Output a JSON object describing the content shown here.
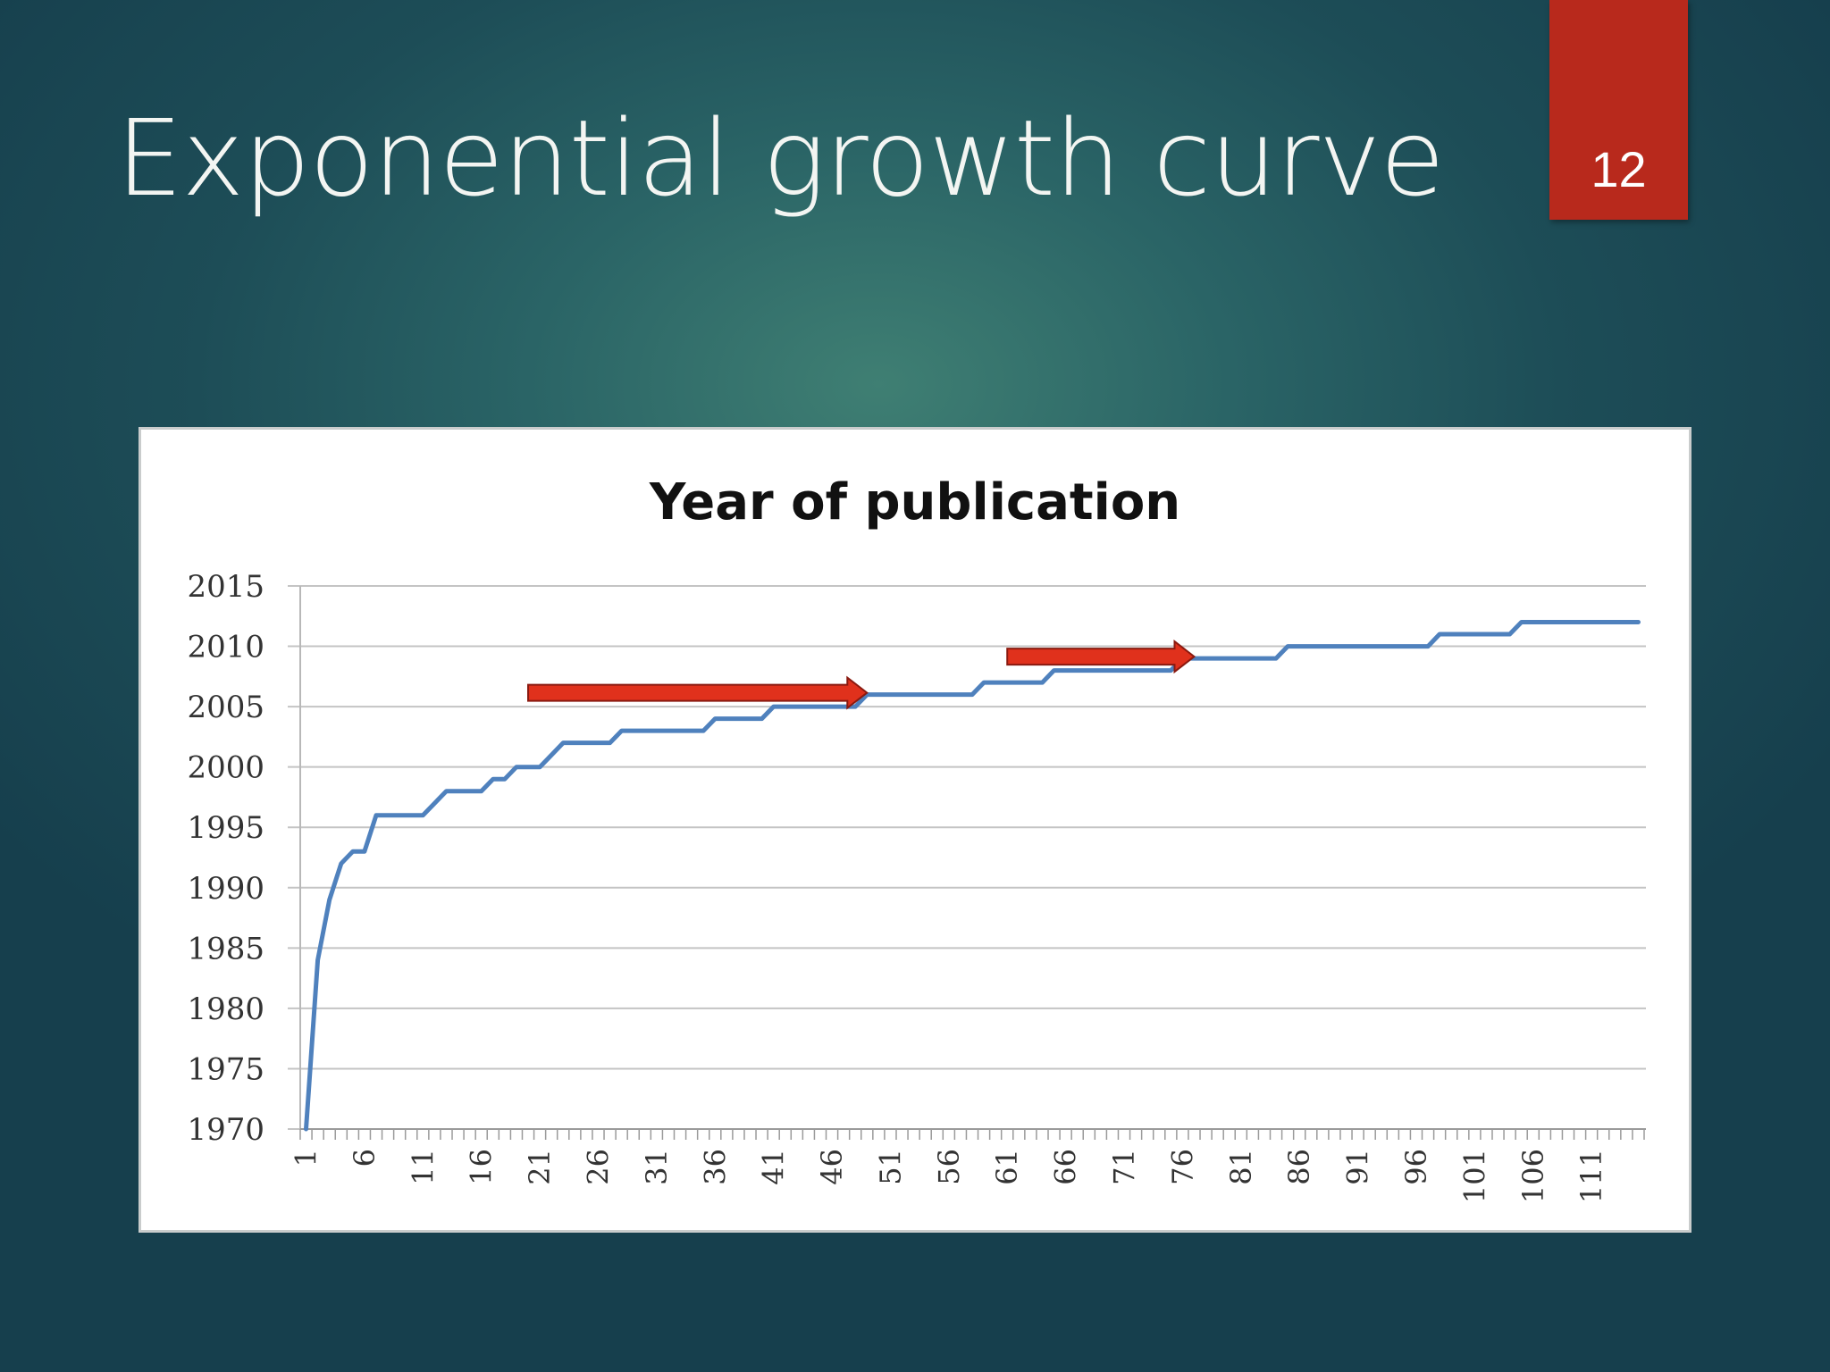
{
  "slide": {
    "title": "Exponential growth curve",
    "page_number": "12"
  },
  "colors": {
    "line": "#4f81bd",
    "arrow": "#e0311c",
    "badge": "#b8291c"
  },
  "chart_data": {
    "type": "line",
    "title": "Year of publication",
    "xlabel": "",
    "ylabel": "",
    "ylim": [
      1970,
      2015
    ],
    "yticks": [
      2015,
      2010,
      2005,
      2000,
      1995,
      1990,
      1985,
      1980,
      1975,
      1970
    ],
    "xlim": [
      1,
      115
    ],
    "xticks": [
      1,
      6,
      11,
      16,
      21,
      26,
      31,
      36,
      41,
      46,
      51,
      56,
      61,
      66,
      71,
      76,
      81,
      86,
      91,
      96,
      101,
      106,
      111
    ],
    "grid": true,
    "legend": "none",
    "series": [
      {
        "x": [
          1,
          2,
          3,
          4,
          5,
          6,
          7,
          8,
          9,
          10,
          11,
          12,
          13,
          14,
          15,
          16,
          17,
          18,
          19,
          20,
          21,
          22,
          23,
          24,
          25,
          26,
          27,
          28,
          29,
          30,
          31,
          32,
          33,
          34,
          35,
          36,
          37,
          38,
          39,
          40,
          41,
          42,
          43,
          44,
          45,
          46,
          47,
          48,
          49,
          50,
          51,
          52,
          53,
          54,
          55,
          56,
          57,
          58,
          59,
          60,
          61,
          62,
          63,
          64,
          65,
          66,
          67,
          68,
          69,
          70,
          71,
          72,
          73,
          74,
          75,
          76,
          77,
          78,
          79,
          80,
          81,
          82,
          83,
          84,
          85,
          86,
          87,
          88,
          89,
          90,
          91,
          92,
          93,
          94,
          95,
          96,
          97,
          98,
          99,
          100,
          101,
          102,
          103,
          104,
          105,
          106,
          107,
          108,
          109,
          110,
          111,
          112,
          113,
          114,
          115
        ],
        "values": [
          1970,
          1984,
          1989,
          1992,
          1993,
          1993,
          1996,
          1996,
          1996,
          1996,
          1996,
          1997,
          1998,
          1998,
          1998,
          1998,
          1999,
          1999,
          2000,
          2000,
          2000,
          2001,
          2002,
          2002,
          2002,
          2002,
          2002,
          2003,
          2003,
          2003,
          2003,
          2003,
          2003,
          2003,
          2003,
          2004,
          2004,
          2004,
          2004,
          2004,
          2005,
          2005,
          2005,
          2005,
          2005,
          2005,
          2005,
          2005,
          2006,
          2006,
          2006,
          2006,
          2006,
          2006,
          2006,
          2006,
          2006,
          2006,
          2007,
          2007,
          2007,
          2007,
          2007,
          2007,
          2008,
          2008,
          2008,
          2008,
          2008,
          2008,
          2008,
          2008,
          2008,
          2008,
          2008,
          2009,
          2009,
          2009,
          2009,
          2009,
          2009,
          2009,
          2009,
          2009,
          2010,
          2010,
          2010,
          2010,
          2010,
          2010,
          2010,
          2010,
          2010,
          2010,
          2010,
          2010,
          2010,
          2011,
          2011,
          2011,
          2011,
          2011,
          2011,
          2011,
          2012,
          2012,
          2012,
          2012,
          2012,
          2012,
          2012,
          2012,
          2012,
          2012,
          2012
        ]
      }
    ],
    "annotations": [
      {
        "type": "arrow",
        "color": "#e0311c",
        "x_from": 20,
        "x_to": 49,
        "y": 2006
      },
      {
        "type": "arrow",
        "color": "#e0311c",
        "x_from": 61,
        "x_to": 77,
        "y": 2009
      }
    ]
  }
}
